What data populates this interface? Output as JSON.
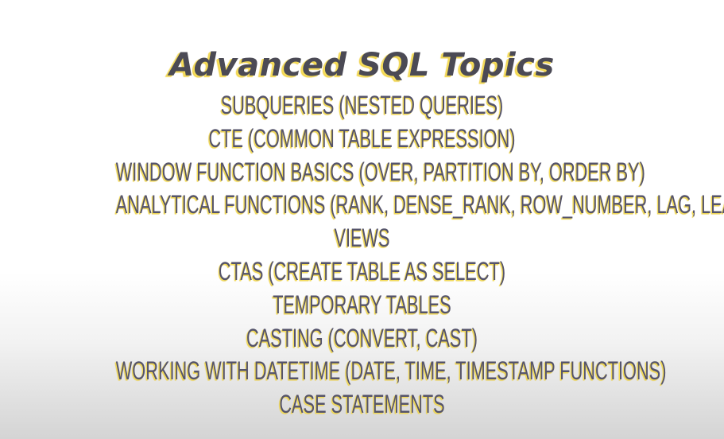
{
  "title": "Advanced SQL Topics",
  "topics": [
    "SUBQUERIES (NESTED QUERIES)",
    "CTE (COMMON TABLE EXPRESSION)",
    "WINDOW FUNCTION BASICS (OVER, PARTITION BY, ORDER BY)",
    "ANALYTICAL FUNCTIONS (RANK, DENSE_RANK, ROW_NUMBER, LAG, LEAD)",
    "VIEWS",
    "CTAS (CREATE TABLE AS SELECT)",
    "TEMPORARY TABLES",
    "CASTING (CONVERT, CAST)",
    "WORKING WITH DATETIME (DATE, TIME, TIMESTAMP FUNCTIONS)",
    "CASE STATEMENTS"
  ],
  "colors": {
    "text": "#55546b",
    "highlight": "#f4dc58",
    "background_top": "#ffffff",
    "background_bottom": "#d4d4d4"
  }
}
